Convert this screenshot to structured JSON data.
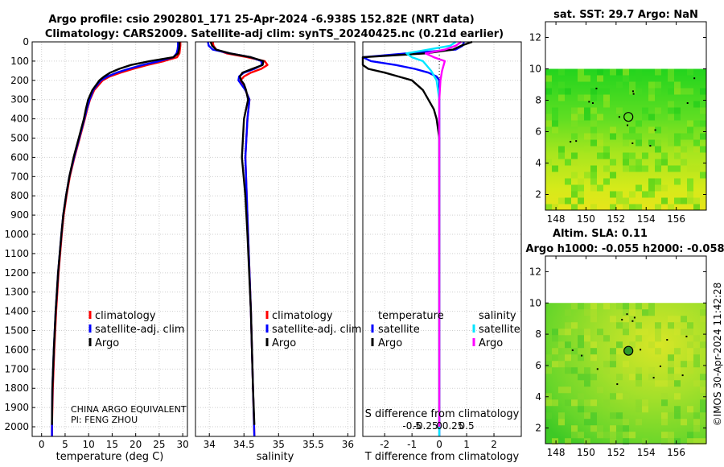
{
  "title_line1": "Argo profile: csio 2902801_171 25-Apr-2024 -6.938S 152.82E (NRT data)",
  "title_line2": "Climatology: CARS2009. Satellite-adj clim: synTS_20240425.nc (0.21d earlier)",
  "depth_ticks": [
    "0",
    "100",
    "200",
    "300",
    "400",
    "500",
    "600",
    "700",
    "800",
    "900",
    "1000",
    "1100",
    "1200",
    "1300",
    "1400",
    "1500",
    "1600",
    "1700",
    "1800",
    "1900",
    "2000"
  ],
  "colors": {
    "climatology": "#ff0000",
    "satellite": "#0000ff",
    "argo": "#000000",
    "sat_diff": "#00e5ff",
    "sal_diff": "#ff00ff"
  },
  "chart_data": [
    {
      "type": "line",
      "name": "temperature profile",
      "xlabel": "temperature (deg C)",
      "ylabel": "depth",
      "xlim": [
        -2,
        31
      ],
      "ylim": [
        2050,
        0
      ],
      "xticks": [
        "0",
        "5",
        "10",
        "15",
        "20",
        "25",
        "30"
      ],
      "legend": [
        "climatology",
        "satellite-adj. clim",
        "Argo"
      ],
      "annotation": [
        "CHINA ARGO EQUIVALENT",
        "PI: FENG ZHOU"
      ],
      "series": [
        {
          "name": "climatology",
          "depth": [
            0,
            20,
            40,
            60,
            80,
            100,
            120,
            140,
            160,
            180,
            200,
            250,
            300,
            350,
            400,
            500,
            600,
            700,
            800,
            900,
            1000,
            1200,
            1400,
            1600,
            1800,
            2000,
            2050
          ],
          "values": [
            29.5,
            29.5,
            29.4,
            29.3,
            28.8,
            26.0,
            22.5,
            19.5,
            16.8,
            14.5,
            13.0,
            11.2,
            10.3,
            9.7,
            9.2,
            8.1,
            7.0,
            6.0,
            5.3,
            4.7,
            4.3,
            3.6,
            3.1,
            2.7,
            2.4,
            2.2,
            2.2
          ]
        },
        {
          "name": "satellite-adj. clim",
          "depth": [
            0,
            20,
            40,
            60,
            80,
            100,
            120,
            140,
            160,
            180,
            200,
            250,
            300,
            350,
            400,
            500,
            600,
            700,
            800,
            900,
            1000,
            1200,
            1400,
            1600,
            1800,
            2000,
            2050
          ],
          "values": [
            29.0,
            29.0,
            28.9,
            28.7,
            28.0,
            25.0,
            21.5,
            18.5,
            16.0,
            14.0,
            12.6,
            11.0,
            10.2,
            9.6,
            9.1,
            8.0,
            6.9,
            5.9,
            5.2,
            4.6,
            4.2,
            3.5,
            3.0,
            2.6,
            2.3,
            2.2,
            2.2
          ]
        },
        {
          "name": "Argo",
          "depth": [
            0,
            20,
            40,
            60,
            80,
            100,
            120,
            140,
            160,
            180,
            200,
            250,
            300,
            350,
            400,
            500,
            600,
            700,
            800,
            900,
            1000,
            1200,
            1400,
            1600,
            1800,
            1990
          ],
          "values": [
            29.3,
            29.3,
            29.2,
            29.0,
            28.0,
            23.0,
            19.0,
            16.5,
            14.6,
            13.3,
            12.3,
            10.8,
            9.9,
            9.4,
            9.0,
            7.9,
            6.8,
            5.9,
            5.2,
            4.6,
            4.2,
            3.5,
            3.0,
            2.6,
            2.3,
            2.2
          ]
        }
      ]
    },
    {
      "type": "line",
      "name": "salinity profile",
      "xlabel": "salinity",
      "xlim": [
        33.8,
        36.1
      ],
      "ylim": [
        2050,
        0
      ],
      "xticks": [
        "34",
        "34.5",
        "35",
        "35.5",
        "36"
      ],
      "legend": [
        "climatology",
        "satellite-adj. clim",
        "Argo"
      ],
      "series": [
        {
          "name": "climatology",
          "depth": [
            0,
            20,
            40,
            60,
            80,
            100,
            120,
            140,
            160,
            180,
            200,
            220,
            250,
            300,
            400,
            600,
            800,
            1000,
            1400,
            1800,
            2050
          ],
          "values": [
            34.05,
            34.06,
            34.1,
            34.25,
            34.55,
            34.8,
            34.84,
            34.75,
            34.6,
            34.5,
            34.45,
            34.47,
            34.52,
            34.58,
            34.55,
            34.52,
            34.54,
            34.56,
            34.6,
            34.63,
            34.65
          ]
        },
        {
          "name": "satellite-adj. clim",
          "depth": [
            0,
            20,
            40,
            60,
            80,
            100,
            120,
            140,
            160,
            180,
            200,
            220,
            250,
            300,
            400,
            600,
            800,
            1000,
            1400,
            1800,
            2050
          ],
          "values": [
            33.98,
            33.99,
            34.05,
            34.3,
            34.6,
            34.75,
            34.76,
            34.65,
            34.5,
            34.43,
            34.42,
            34.46,
            34.52,
            34.58,
            34.55,
            34.52,
            34.54,
            34.56,
            34.6,
            34.63,
            34.65
          ]
        },
        {
          "name": "Argo",
          "depth": [
            0,
            20,
            40,
            60,
            80,
            100,
            120,
            140,
            160,
            180,
            200,
            220,
            250,
            300,
            400,
            600,
            800,
            1000,
            1400,
            1800,
            1990
          ],
          "values": [
            34.02,
            34.04,
            34.1,
            34.3,
            34.6,
            34.78,
            34.77,
            34.62,
            34.48,
            34.44,
            34.46,
            34.5,
            34.53,
            34.56,
            34.5,
            34.47,
            34.52,
            34.55,
            34.6,
            34.63,
            34.65
          ]
        }
      ]
    },
    {
      "type": "line",
      "name": "difference from climatology",
      "xlabel": "T difference from climatology",
      "xlabel2": "S difference from climatology",
      "xlim": [
        -2.8,
        3.0
      ],
      "ylim": [
        2050,
        0
      ],
      "xticks": [
        "-2",
        "-1",
        "0",
        "1",
        "2"
      ],
      "sticks": [
        "-0.5",
        "-0.25",
        "0",
        "0.25",
        "0.5"
      ],
      "legend_temperature": [
        "temperature",
        "satellite",
        "Argo"
      ],
      "legend_salinity": [
        "salinity",
        "satellite",
        "Argo"
      ],
      "series": [
        {
          "name": "T satellite",
          "depth": [
            0,
            20,
            40,
            60,
            80,
            100,
            120,
            140,
            160,
            180,
            200,
            250,
            300,
            400,
            600,
            800,
            1000,
            1400,
            1800,
            2050
          ],
          "values": [
            0.9,
            0.85,
            0.6,
            -1.2,
            -2.8,
            -2.5,
            -1.6,
            -0.9,
            -0.4,
            -0.1,
            0.0,
            0.0,
            0.0,
            0.0,
            0.0,
            0.0,
            0.0,
            0.0,
            0.0,
            0.0
          ]
        },
        {
          "name": "T Argo",
          "depth": [
            0,
            20,
            40,
            60,
            80,
            100,
            120,
            140,
            160,
            180,
            200,
            250,
            300,
            350,
            400,
            500,
            600,
            800,
            1000,
            1400,
            1800,
            2000
          ],
          "values": [
            1.2,
            0.8,
            0.5,
            -0.5,
            -2.8,
            -3.0,
            -2.8,
            -2.6,
            -2.0,
            -1.5,
            -1.0,
            -0.6,
            -0.4,
            -0.2,
            -0.1,
            0.0,
            0.0,
            0.0,
            0.0,
            0.0,
            0.0,
            0.0
          ]
        },
        {
          "name": "S satellite",
          "depth": [
            0,
            20,
            40,
            60,
            80,
            100,
            150,
            200,
            300,
            500,
            800,
            1200,
            1600,
            2050
          ],
          "values": [
            0.3,
            0.2,
            -0.2,
            -0.6,
            -0.5,
            -0.3,
            -0.15,
            -0.05,
            0.0,
            0.0,
            0.0,
            0.0,
            0.0,
            0.0
          ]
        },
        {
          "name": "S Argo",
          "depth": [
            0,
            20,
            40,
            60,
            80,
            100,
            150,
            200,
            300,
            500,
            800,
            1200,
            1600,
            2000
          ],
          "values": [
            0.4,
            0.3,
            0.1,
            -0.25,
            -0.1,
            0.1,
            0.05,
            0.02,
            0.0,
            0.0,
            0.0,
            0.0,
            0.0,
            0.0
          ]
        }
      ]
    },
    {
      "type": "heatmap",
      "name": "sat SST map",
      "title": "sat. SST: 29.7 Argo: NaN",
      "xticks": [
        "148",
        "150",
        "152",
        "154",
        "156"
      ],
      "yticks": [
        "2",
        "4",
        "6",
        "8",
        "10",
        "12"
      ],
      "xlim": [
        147.3,
        158.0
      ],
      "ylim": [
        1,
        13
      ],
      "data_top": 10,
      "float_location": [
        152.82,
        6.938
      ]
    },
    {
      "type": "heatmap",
      "name": "altimetry SLA map",
      "title1": "Altim. SLA: 0.11",
      "title2": "Argo h1000: -0.055 h2000: -0.058",
      "xticks": [
        "148",
        "150",
        "152",
        "154",
        "156"
      ],
      "yticks": [
        "2",
        "4",
        "6",
        "8",
        "10",
        "12"
      ],
      "xlim": [
        147.3,
        158.0
      ],
      "ylim": [
        1,
        13
      ],
      "data_top": 10,
      "float_location": [
        152.82,
        6.938
      ]
    }
  ],
  "watermark": "©IMOS 30-Apr-2024 11:42:28"
}
